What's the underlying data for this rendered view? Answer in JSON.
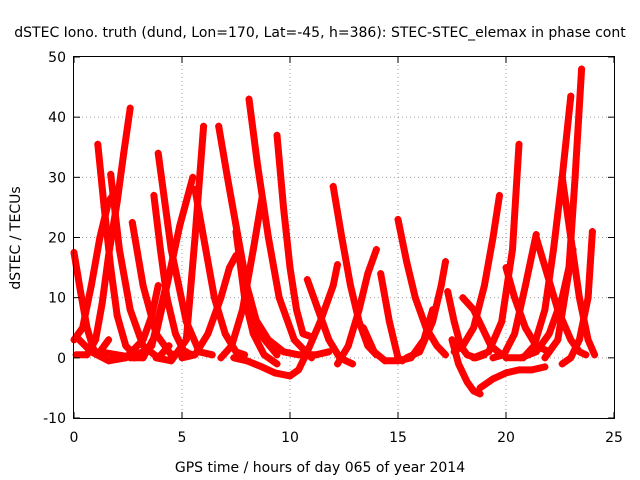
{
  "chart_data": {
    "type": "scatter",
    "title": "dSTEC Iono. truth (dund, Lon=170, Lat=-45, h=386): STEC-STEC_elemax in phase cont",
    "xlabel": "GPS time / hours of day 065 of year 2014",
    "ylabel": "dSTEC  / TECUs",
    "xlim": [
      0,
      25
    ],
    "ylim": [
      -10,
      50
    ],
    "x_ticks": [
      0,
      5,
      10,
      15,
      20,
      25
    ],
    "y_ticks": [
      -10,
      0,
      10,
      20,
      30,
      40,
      50
    ],
    "grid": true,
    "legend": "none",
    "marker": "plus",
    "color": "#ff0000",
    "series": [
      {
        "x": [
          0.0,
          0.3,
          0.6,
          0.9,
          1.1,
          1.3,
          1.6
        ],
        "y": [
          17.5,
          11,
          5,
          1.5,
          0.5,
          1.5,
          3.0
        ]
      },
      {
        "x": [
          0.0,
          0.4,
          0.8,
          1.2,
          1.6,
          2.0
        ],
        "y": [
          3.0,
          5.0,
          12,
          20,
          26,
          28.0
        ]
      },
      {
        "x": [
          0.1,
          0.6,
          1.0,
          1.3,
          1.6,
          2.0,
          2.3,
          2.6
        ],
        "y": [
          0.5,
          0.5,
          3,
          9,
          17,
          26,
          34,
          41.5
        ]
      },
      {
        "x": [
          1.1,
          1.4,
          1.7,
          2.0,
          2.4,
          2.8,
          3.2
        ],
        "y": [
          35.5,
          25,
          15,
          7,
          2,
          0.5,
          1.0
        ]
      },
      {
        "x": [
          0.1,
          0.8,
          1.6,
          2.4,
          3.2,
          3.6,
          3.9
        ],
        "y": [
          3.5,
          1,
          -0.5,
          0,
          3,
          7,
          12.0
        ]
      },
      {
        "x": [
          1.7,
          2.1,
          2.6,
          3.2,
          3.9,
          4.4
        ],
        "y": [
          30.5,
          18,
          8,
          2,
          0,
          2.0
        ]
      },
      {
        "x": [
          2.7,
          3.2,
          3.8,
          4.5,
          5.2
        ],
        "y": [
          22.5,
          12,
          4,
          0.5,
          1.0
        ]
      },
      {
        "x": [
          1.2,
          2.0,
          2.8,
          3.6,
          4.0,
          4.4
        ],
        "y": [
          1.0,
          0.5,
          0,
          2,
          8,
          14.0
        ]
      },
      {
        "x": [
          2.6,
          3.2,
          3.8,
          4.3,
          4.9,
          5.5
        ],
        "y": [
          0.0,
          0,
          4,
          12,
          22,
          30.0
        ]
      },
      {
        "x": [
          3.7,
          4.0,
          4.3,
          4.7,
          5.1,
          5.5
        ],
        "y": [
          27.0,
          18,
          10,
          4,
          1,
          0.5
        ]
      },
      {
        "x": [
          3.9,
          4.5,
          5.2,
          5.8,
          6.4
        ],
        "y": [
          34.0,
          18,
          6,
          1,
          0.5
        ]
      },
      {
        "x": [
          3.8,
          4.5,
          5.2,
          5.6,
          6.0
        ],
        "y": [
          0.0,
          -0.5,
          3,
          20,
          38.5
        ]
      },
      {
        "x": [
          5.6,
          6.0,
          6.5,
          7.0,
          7.5,
          7.9
        ],
        "y": [
          28.0,
          20,
          10,
          4,
          1,
          0.5
        ]
      },
      {
        "x": [
          5.0,
          5.6,
          6.2,
          6.8,
          7.2,
          7.5
        ],
        "y": [
          0.0,
          0.5,
          4,
          10,
          15,
          17.0
        ]
      },
      {
        "x": [
          6.7,
          7.1,
          7.5,
          8.0,
          8.6,
          9.4
        ],
        "y": [
          38.5,
          30,
          22,
          12,
          4,
          0.5
        ]
      },
      {
        "x": [
          6.8,
          7.3,
          7.8,
          8.3,
          8.7
        ],
        "y": [
          0.0,
          2,
          8,
          18,
          26.5
        ]
      },
      {
        "x": [
          8.1,
          8.5,
          9.0,
          9.5,
          10.2,
          11.0
        ],
        "y": [
          43.0,
          32,
          20,
          10,
          3,
          0.0
        ]
      },
      {
        "x": [
          7.4,
          8.0,
          8.7,
          9.3,
          10.0
        ],
        "y": [
          0.0,
          -0.5,
          -1.5,
          -2.5,
          -3.0
        ]
      },
      {
        "x": [
          7.5,
          7.9,
          8.3,
          8.8,
          9.4
        ],
        "y": [
          21.0,
          10,
          4,
          0.5,
          -1.0
        ]
      },
      {
        "x": [
          9.4,
          9.7,
          10.0,
          10.3,
          10.6,
          11.0
        ],
        "y": [
          37.0,
          25,
          15,
          8,
          4,
          3.5
        ]
      },
      {
        "x": [
          8.3,
          9.0,
          9.7,
          10.4,
          11.2,
          11.8
        ],
        "y": [
          7.0,
          3,
          1,
          0.5,
          0.5,
          1.0
        ]
      },
      {
        "x": [
          10.0,
          10.4,
          10.8,
          11.4,
          12.0,
          12.2
        ],
        "y": [
          -3.0,
          -2,
          1,
          6,
          12,
          15.5
        ]
      },
      {
        "x": [
          10.8,
          11.3,
          11.8,
          12.3,
          12.9
        ],
        "y": [
          13.0,
          8,
          3,
          0,
          -1.0
        ]
      },
      {
        "x": [
          12.0,
          12.4,
          12.8,
          13.2,
          13.6,
          14.0
        ],
        "y": [
          28.5,
          20,
          12,
          6,
          2,
          0.5
        ]
      },
      {
        "x": [
          12.2,
          12.7,
          13.2,
          13.6,
          14.0
        ],
        "y": [
          -1.0,
          2,
          8,
          14,
          18.0
        ]
      },
      {
        "x": [
          13.4,
          13.9,
          14.4,
          15.0,
          15.6,
          16.2,
          16.6
        ],
        "y": [
          5.0,
          1,
          -0.5,
          -0.5,
          0,
          3,
          8.0
        ]
      },
      {
        "x": [
          14.2,
          14.6,
          15.0,
          15.2
        ],
        "y": [
          14.0,
          6,
          0,
          -0.5
        ]
      },
      {
        "x": [
          15.0,
          15.4,
          15.8,
          16.3,
          16.8,
          17.2
        ],
        "y": [
          23.0,
          16,
          10,
          5,
          2,
          0.5
        ]
      },
      {
        "x": [
          15.4,
          16.0,
          16.6,
          17.0,
          17.2
        ],
        "y": [
          0.0,
          1,
          6,
          12,
          16.0
        ]
      },
      {
        "x": [
          17.3,
          17.6,
          17.9,
          18.2,
          18.6,
          19.0
        ],
        "y": [
          11.0,
          6,
          2,
          0.5,
          0,
          0.5
        ]
      },
      {
        "x": [
          17.5,
          17.8,
          18.2,
          18.5,
          18.8
        ],
        "y": [
          3.0,
          -1,
          -4,
          -5.5,
          -6.0
        ]
      },
      {
        "x": [
          18.8,
          19.4,
          20.0,
          20.6,
          21.2,
          21.8
        ],
        "y": [
          -5.0,
          -3.5,
          -2.5,
          -2,
          -2,
          -1.5
        ]
      },
      {
        "x": [
          17.6,
          18.0,
          18.5,
          19.0,
          19.4,
          19.7
        ],
        "y": [
          1.0,
          2,
          5,
          12,
          20,
          27.0
        ]
      },
      {
        "x": [
          18.0,
          18.5,
          18.9,
          19.3,
          19.8
        ],
        "y": [
          10.0,
          8,
          5,
          2,
          0.5
        ]
      },
      {
        "x": [
          18.5,
          19.2,
          19.8,
          20.3,
          20.6
        ],
        "y": [
          0.0,
          1,
          6,
          18,
          35.5
        ]
      },
      {
        "x": [
          20.0,
          20.4,
          20.9,
          21.4,
          22.0
        ],
        "y": [
          15.0,
          10,
          5,
          2,
          1.0
        ]
      },
      {
        "x": [
          19.4,
          19.9,
          20.4,
          20.9,
          21.4
        ],
        "y": [
          0.0,
          0.5,
          4,
          12,
          20.5
        ]
      },
      {
        "x": [
          20.8,
          21.3,
          21.8,
          22.2,
          22.6,
          23.0
        ],
        "y": [
          0.0,
          2,
          8,
          18,
          30,
          43.5
        ]
      },
      {
        "x": [
          20.0,
          20.7,
          21.4,
          22.0,
          22.6,
          23.1
        ],
        "y": [
          0.0,
          0,
          1,
          4,
          10,
          18.0
        ]
      },
      {
        "x": [
          21.4,
          21.9,
          22.4,
          23.0,
          23.4,
          23.7
        ],
        "y": [
          20.0,
          14,
          8,
          3,
          1,
          0.5
        ]
      },
      {
        "x": [
          22.6,
          23.0,
          23.4,
          23.8,
          24.1
        ],
        "y": [
          30.0,
          20,
          10,
          3,
          0.5
        ]
      },
      {
        "x": [
          21.8,
          22.4,
          22.9,
          23.2,
          23.5
        ],
        "y": [
          0.0,
          3,
          14,
          30,
          48.0
        ]
      },
      {
        "x": [
          22.6,
          23.0,
          23.4,
          23.8,
          24.0
        ],
        "y": [
          -1.0,
          0,
          3,
          10,
          21.0
        ]
      }
    ]
  }
}
